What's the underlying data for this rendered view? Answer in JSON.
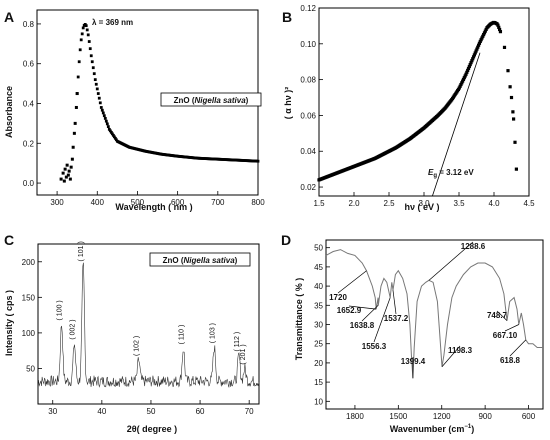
{
  "chart_data": [
    {
      "panel": "A",
      "type": "scatter",
      "xlabel": "Wavelength ( nm )",
      "ylabel": "Absorbance",
      "xlim": [
        250,
        800
      ],
      "ylim": [
        -0.06,
        0.87
      ],
      "xticks": [
        "300",
        "400",
        "500",
        "600",
        "700",
        "800"
      ],
      "yticks": [
        "0.0",
        "0.2",
        "0.4",
        "0.6",
        "0.8"
      ],
      "annotation": {
        "label": "λ = 369 nm",
        "x": 369,
        "y": 0.8
      },
      "legend": {
        "prefix": "ZnO (",
        "italic": "Nigella sativa",
        "suffix": ")"
      },
      "series": [
        {
          "x": [
            310,
            315,
            318,
            320,
            323,
            325,
            328,
            330,
            333,
            335,
            338,
            340,
            343,
            345,
            348,
            350,
            353,
            356,
            360,
            365,
            369,
            373,
            378,
            385,
            395,
            410,
            430,
            450,
            480,
            520,
            560,
            600,
            650,
            700,
            750,
            800
          ],
          "y": [
            0.02,
            0.05,
            0.01,
            0.07,
            0.03,
            0.09,
            0.04,
            0.06,
            0.02,
            0.08,
            0.12,
            0.18,
            0.25,
            0.3,
            0.38,
            0.45,
            0.55,
            0.64,
            0.72,
            0.78,
            0.8,
            0.79,
            0.74,
            0.64,
            0.52,
            0.38,
            0.27,
            0.21,
            0.18,
            0.16,
            0.145,
            0.135,
            0.125,
            0.12,
            0.115,
            0.11
          ]
        }
      ]
    },
    {
      "panel": "B",
      "type": "scatter",
      "xlabel": "hν ( eV )",
      "ylabel": "( α hν )²",
      "xlim": [
        1.5,
        4.5
      ],
      "ylim": [
        0.015,
        0.12
      ],
      "xticks": [
        "1.5",
        "2.0",
        "2.5",
        "3.0",
        "3.5",
        "4.0",
        "4.5"
      ],
      "yticks": [
        "0.02",
        "0.04",
        "0.06",
        "0.08",
        "0.10",
        "0.12"
      ],
      "annotation": {
        "label": "Eg = 3.12 eV",
        "x": 3.12
      },
      "tangent": {
        "x": [
          3.12,
          3.8
        ],
        "y": [
          0.015,
          0.095
        ]
      },
      "series": [
        {
          "x": [
            1.5,
            1.6,
            1.7,
            1.8,
            1.9,
            2.0,
            2.1,
            2.2,
            2.3,
            2.4,
            2.5,
            2.6,
            2.7,
            2.8,
            2.9,
            3.0,
            3.1,
            3.2,
            3.3,
            3.4,
            3.5,
            3.6,
            3.7,
            3.8,
            3.85,
            3.9,
            3.95,
            4.0,
            4.05,
            4.1,
            4.15,
            4.2,
            4.25,
            4.28,
            4.3,
            4.32
          ],
          "y": [
            0.024,
            0.0255,
            0.027,
            0.0285,
            0.03,
            0.0315,
            0.033,
            0.0345,
            0.036,
            0.038,
            0.04,
            0.042,
            0.0445,
            0.047,
            0.05,
            0.053,
            0.0565,
            0.06,
            0.064,
            0.069,
            0.075,
            0.083,
            0.092,
            0.101,
            0.105,
            0.109,
            0.111,
            0.112,
            0.111,
            0.106,
            0.098,
            0.085,
            0.07,
            0.058,
            0.045,
            0.03
          ]
        }
      ]
    },
    {
      "panel": "C",
      "type": "line",
      "xlabel": "2θ( degree )",
      "ylabel": "Intensity ( cps )",
      "xlim": [
        27,
        72
      ],
      "ylim": [
        0,
        225
      ],
      "xticks": [
        "30",
        "40",
        "50",
        "60",
        "70"
      ],
      "yticks": [
        "50",
        "100",
        "150",
        "200"
      ],
      "legend": {
        "prefix": "ZnO (",
        "italic": "Nigella sativa",
        "suffix": ")"
      },
      "peaks": [
        {
          "label": "( 100 )",
          "x": 31.8,
          "y": 112
        },
        {
          "label": "( 002 )",
          "x": 34.4,
          "y": 85
        },
        {
          "label": "( 101 )",
          "x": 36.2,
          "y": 195
        },
        {
          "label": "( 102 )",
          "x": 47.5,
          "y": 62
        },
        {
          "label": "( 110 )",
          "x": 56.6,
          "y": 78
        },
        {
          "label": "( 103 )",
          "x": 62.9,
          "y": 80
        },
        {
          "label": "( 112 )",
          "x": 67.9,
          "y": 68
        },
        {
          "label": "( 201 )",
          "x": 69.1,
          "y": 50
        }
      ],
      "baseline": 32
    },
    {
      "panel": "D",
      "type": "line",
      "xlabel": "Wavenumber (cm⁻¹)",
      "xlabel_base": "Wavenumber (cm",
      "xlabel_sup": "−1",
      "xlabel_end": ")",
      "ylabel": "Transmittance ( % )",
      "xlim": [
        2000,
        500
      ],
      "ylim": [
        8,
        52
      ],
      "xticks": [
        "1800",
        "1500",
        "1200",
        "900",
        "600"
      ],
      "yticks": [
        "10",
        "15",
        "20",
        "25",
        "30",
        "35",
        "40",
        "45",
        "50"
      ],
      "series": [
        {
          "x": [
            2000,
            1950,
            1900,
            1850,
            1800,
            1750,
            1720,
            1700,
            1680,
            1660,
            1652.9,
            1640,
            1638.8,
            1620,
            1600,
            1580,
            1556.3,
            1545,
            1537.2,
            1520,
            1500,
            1470,
            1440,
            1420,
            1410,
            1399.4,
            1390,
            1370,
            1340,
            1310,
            1288.6,
            1260,
            1230,
            1215,
            1198.3,
            1185,
            1160,
            1130,
            1100,
            1050,
            1000,
            950,
            900,
            850,
            800,
            770,
            748.7,
            730,
            700,
            680,
            667.1,
            650,
            635,
            618.8,
            600,
            570,
            540,
            510,
            500
          ],
          "y": [
            48,
            49,
            49.5,
            48.5,
            48,
            46,
            44,
            42,
            40,
            37,
            34,
            37,
            35,
            40,
            42,
            41,
            37,
            41,
            39,
            43,
            44,
            42,
            38,
            30,
            22,
            16,
            24,
            36,
            40,
            41,
            41.5,
            41,
            36,
            28,
            19,
            22,
            30,
            37,
            40,
            43,
            45,
            46,
            46,
            45,
            42,
            38,
            31,
            36,
            37,
            34,
            30,
            33,
            30,
            26,
            25,
            25,
            24,
            24,
            24
          ]
        }
      ],
      "annotations": [
        {
          "label": "1720",
          "x": 1720,
          "y": 44
        },
        {
          "label": "1652.9",
          "x": 1652.9,
          "y": 34
        },
        {
          "label": "1638.8",
          "x": 1638.8,
          "y": 35
        },
        {
          "label": "1556.3",
          "x": 1556.3,
          "y": 37
        },
        {
          "label": "1537.2",
          "x": 1537.2,
          "y": 39
        },
        {
          "label": "1288.6",
          "x": 1288.6,
          "y": 41.5
        },
        {
          "label": "1399.4",
          "x": 1399.4,
          "y": 16
        },
        {
          "label": "1198.3",
          "x": 1198.3,
          "y": 19
        },
        {
          "label": "748.7",
          "x": 748.7,
          "y": 31
        },
        {
          "label": "667.10",
          "x": 667.1,
          "y": 30
        },
        {
          "label": "618.8",
          "x": 618.8,
          "y": 26
        }
      ]
    }
  ]
}
